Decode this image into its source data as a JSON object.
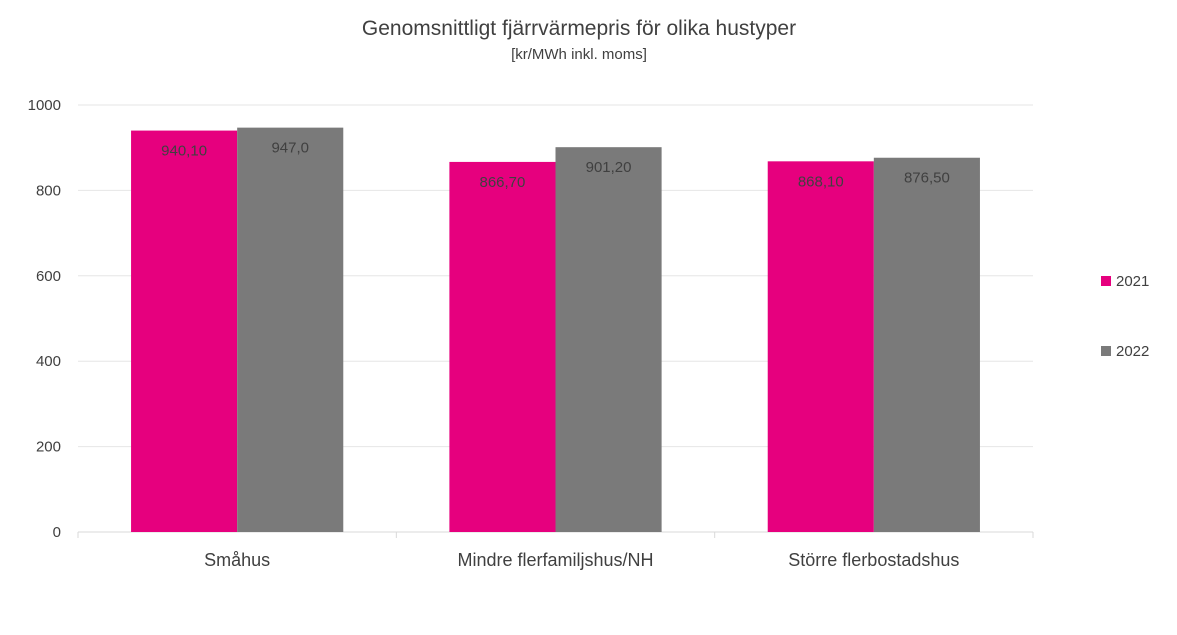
{
  "chart_data": {
    "type": "bar",
    "title": "Genomsnittligt fjärrvärmepris för olika hustyper",
    "subtitle": "[kr/MWh inkl. moms]",
    "xlabel": "",
    "ylabel": "",
    "categories": [
      "Småhus",
      "Mindre flerfamiljshus/NH",
      "Större flerbostadshus"
    ],
    "series": [
      {
        "name": "2021",
        "color": "#e6007e",
        "values": [
          940.1,
          866.7,
          868.1
        ],
        "labels": [
          "940,10",
          "866,70",
          "868,10"
        ]
      },
      {
        "name": "2022",
        "color": "#7a7a7a",
        "values": [
          947.0,
          901.2,
          876.5
        ],
        "labels": [
          "947,0",
          "901,20",
          "876,50"
        ]
      }
    ],
    "ylim": [
      0,
      1000
    ],
    "yticks": [
      0,
      200,
      400,
      600,
      800,
      1000
    ],
    "grid": true,
    "legend_position": "right"
  }
}
